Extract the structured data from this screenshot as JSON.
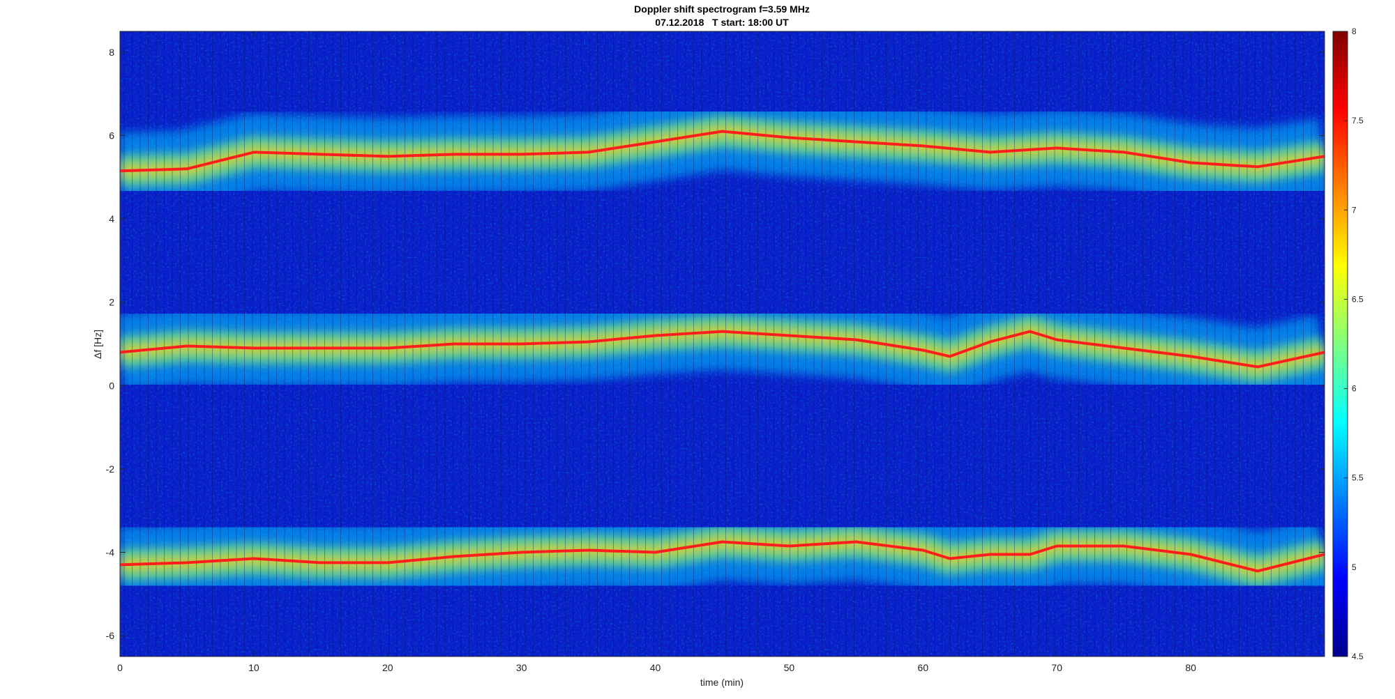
{
  "chart_data": {
    "type": "heatmap",
    "title": "Doppler shift spectrogram f=3.59 MHz",
    "subtitle": "07.12.2018   T start: 18:00 UT",
    "xlabel": "time (min)",
    "ylabel": "Δf [Hz]",
    "xlim": [
      0,
      90
    ],
    "ylim": [
      -6.5,
      8.5
    ],
    "x_ticks": [
      "0",
      "10",
      "20",
      "30",
      "40",
      "50",
      "60",
      "70",
      "80"
    ],
    "y_ticks": [
      "-6",
      "-4",
      "-2",
      "0",
      "2",
      "4",
      "6",
      "8"
    ],
    "colorbar": {
      "colormap": "jet",
      "range": [
        4.5,
        8
      ],
      "ticks": [
        "4.5",
        "5",
        "5.5",
        "6",
        "6.5",
        "7",
        "7.5",
        "8"
      ]
    },
    "traces": [
      {
        "band": "upper",
        "x": [
          0,
          5,
          10,
          15,
          20,
          25,
          30,
          35,
          40,
          45,
          50,
          55,
          60,
          65,
          70,
          75,
          80,
          85,
          90
        ],
        "y": [
          5.15,
          5.2,
          5.6,
          5.55,
          5.5,
          5.55,
          5.55,
          5.6,
          5.85,
          6.1,
          5.95,
          5.85,
          5.75,
          5.6,
          5.7,
          5.6,
          5.35,
          5.25,
          5.5
        ]
      },
      {
        "band": "middle",
        "x": [
          0,
          5,
          10,
          15,
          20,
          25,
          30,
          35,
          40,
          45,
          50,
          55,
          60,
          62,
          65,
          68,
          70,
          75,
          80,
          85,
          90
        ],
        "y": [
          0.8,
          0.95,
          0.9,
          0.9,
          0.9,
          1.0,
          1.0,
          1.05,
          1.2,
          1.3,
          1.2,
          1.1,
          0.85,
          0.7,
          1.05,
          1.3,
          1.1,
          0.9,
          0.7,
          0.45,
          0.8
        ]
      },
      {
        "band": "lower",
        "x": [
          0,
          5,
          10,
          15,
          20,
          25,
          30,
          35,
          40,
          45,
          50,
          55,
          60,
          62,
          65,
          68,
          70,
          75,
          80,
          85,
          90
        ],
        "y": [
          -4.3,
          -4.25,
          -4.15,
          -4.25,
          -4.25,
          -4.1,
          -4.0,
          -3.95,
          -4.0,
          -3.75,
          -3.85,
          -3.75,
          -3.95,
          -4.15,
          -4.05,
          -4.05,
          -3.85,
          -3.85,
          -4.05,
          -4.45,
          -4.05
        ]
      }
    ]
  }
}
